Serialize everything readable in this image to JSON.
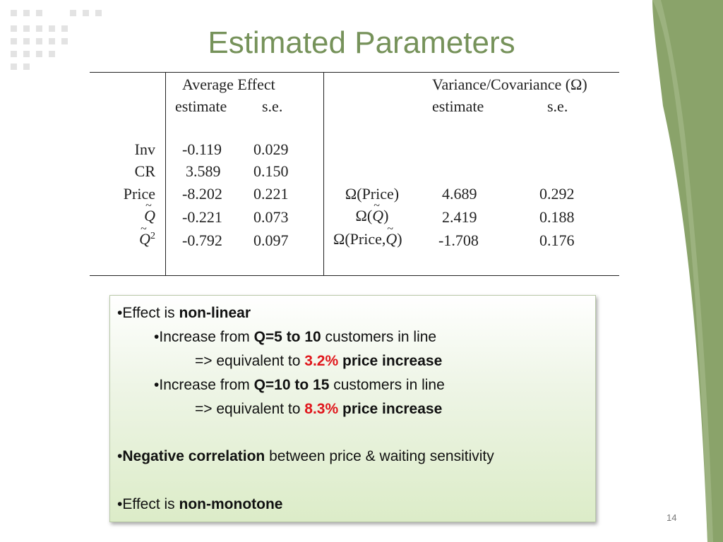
{
  "slide": {
    "title": "Estimated Parameters",
    "page_number": "14"
  },
  "table": {
    "avg_header": "Average Effect",
    "avg_sub_estimate": "estimate",
    "avg_sub_se": "s.e.",
    "var_header": "Variance/Covariance (Ω)",
    "var_sub_estimate": "estimate",
    "var_sub_se": "s.e.",
    "rows": [
      {
        "label": "Inv",
        "estimate": "-0.119",
        "se": "0.029"
      },
      {
        "label": "CR",
        "estimate": "3.589",
        "se": "0.150"
      },
      {
        "label": "Price",
        "estimate": "-8.202",
        "se": "0.221"
      },
      {
        "label": "Q",
        "estimate": "-0.221",
        "se": "0.073"
      },
      {
        "label": "Q",
        "label_sup": "2",
        "estimate": "-0.792",
        "se": "0.097"
      }
    ],
    "var_rows": [
      {
        "label": "Ω(Price)",
        "estimate": "4.689",
        "se": "0.292"
      },
      {
        "label_prefix": "Ω(",
        "label_var": "Q",
        "label_suffix": ")",
        "estimate": "2.419",
        "se": "0.188"
      },
      {
        "label_prefix": "Ω(Price,",
        "label_var": "Q",
        "label_suffix": ")",
        "estimate": "-1.708",
        "se": "0.176"
      }
    ]
  },
  "notes": {
    "bullet": "•",
    "l1_a": "Effect is ",
    "l1_b": "non-linear",
    "l2_a": "Increase from ",
    "l2_b": "Q=5 to 10",
    "l2_c": " customers in line",
    "l3_a": "=> equivalent to ",
    "l3_b": "3.2%",
    "l3_c": " price increase",
    "l4_a": "Increase from ",
    "l4_b": "Q=10 to 15",
    "l4_c": " customers in line",
    "l5_a": "=> equivalent to ",
    "l5_b": "8.3%",
    "l5_c": " price increase",
    "l6_a": "Negative correlation",
    "l6_b": " between price & waiting sensitivity",
    "l7_a": "Effect is ",
    "l7_b": "non-monotone"
  },
  "colors": {
    "title": "#76925a",
    "accent_green": "#8aa36a",
    "highlight_red": "#e0161b"
  }
}
